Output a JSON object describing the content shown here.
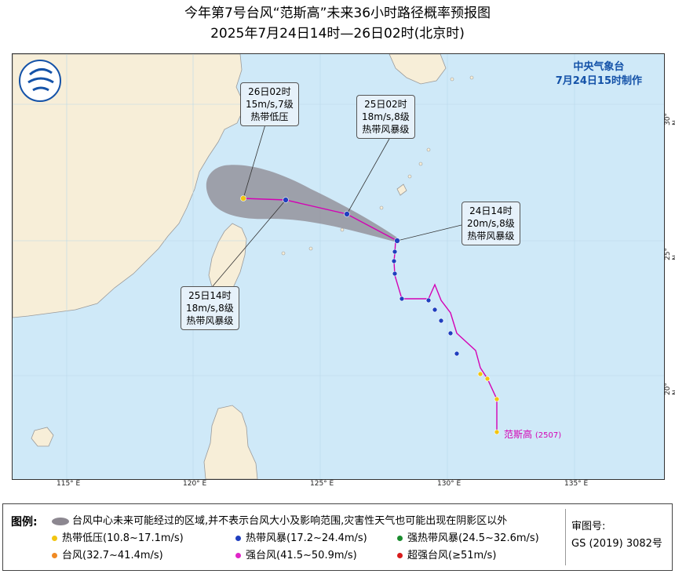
{
  "title": {
    "line1": "今年第7号台风“范斯高”未来36小时路径概率预报图",
    "line2": "2025年7月24日14时—26日02时(北京时)"
  },
  "agency": {
    "name": "中央气象台",
    "issued": "7月24日15时制作"
  },
  "storm": {
    "name": "范斯高",
    "code": "(2507)"
  },
  "forecast_points": [
    {
      "time": "24日14时",
      "wind": "20m/s,8级",
      "category": "热带风暴级"
    },
    {
      "time": "25日02时",
      "wind": "18m/s,8级",
      "category": "热带风暴级"
    },
    {
      "time": "25日14时",
      "wind": "18m/s,8级",
      "category": "热带风暴级"
    },
    {
      "time": "26日02时",
      "wind": "15m/s,7级",
      "category": "热带低压"
    }
  ],
  "axes": {
    "longitude": [
      "115° E",
      "120° E",
      "125° E",
      "130° E",
      "135° E"
    ],
    "latitude": [
      "30° N",
      "25° N",
      "20° N"
    ]
  },
  "legend": {
    "title": "图例:",
    "area_note": "台风中心未来可能经过的区域,并不表示台风大小及影响范围,灾害性天气也可能出现在阴影区以外",
    "items": [
      {
        "label": "热带低压(10.8~17.1m/s)",
        "color": "#f2c511"
      },
      {
        "label": "热带风暴(17.2~24.4m/s)",
        "color": "#1f3fbf"
      },
      {
        "label": "强热带风暴(24.5~32.6m/s)",
        "color": "#1a8c2e"
      },
      {
        "label": "台风(32.7~41.4m/s)",
        "color": "#f08a24"
      },
      {
        "label": "强台风(41.5~50.9m/s)",
        "color": "#e025c8"
      },
      {
        "label": "超强台风(≥51m/s)",
        "color": "#d81b1b"
      }
    ]
  },
  "review": {
    "label": "审图号:",
    "number": "GS (2019) 3082号"
  },
  "colors": {
    "sea": "#cfe9f8",
    "land": "#f7eed8",
    "probability_area": "#8c8790",
    "track": "#d400b4",
    "agency_text": "#1452a8"
  }
}
